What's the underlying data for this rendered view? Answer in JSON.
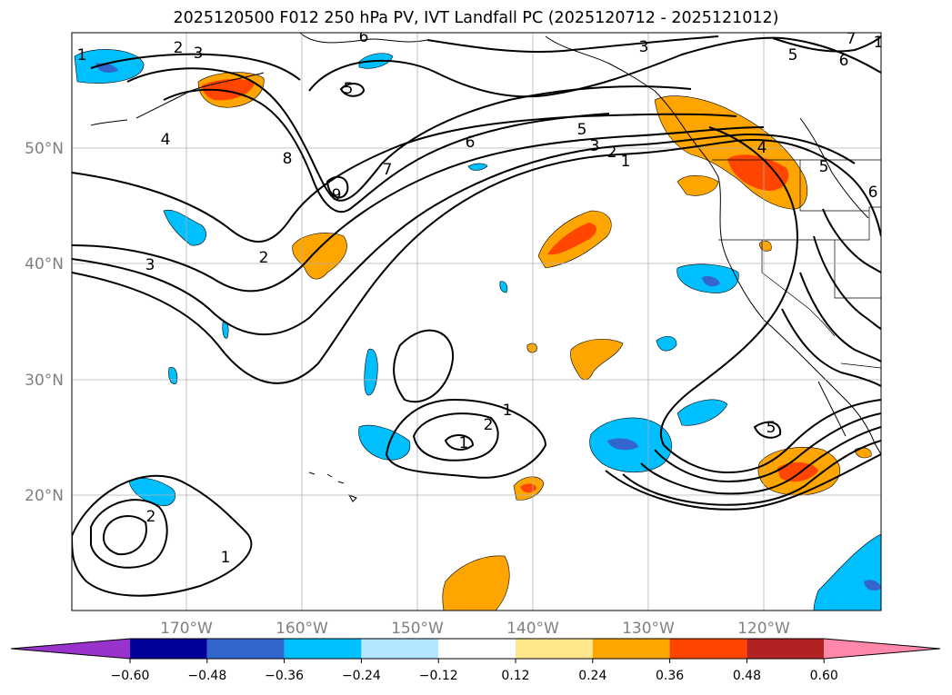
{
  "title": "2025120500 F012 250 hPa PV, IVT Landfall PC (2025120712 - 2025121012)",
  "axes": {
    "lat_labels": [
      "50°N",
      "40°N",
      "30°N",
      "20°N"
    ],
    "lon_labels": [
      "170°W",
      "160°W",
      "150°W",
      "140°W",
      "130°W",
      "120°W"
    ]
  },
  "colorbar": {
    "colors": [
      "#9933cc",
      "#000099",
      "#3366cc",
      "#00bfff",
      "#b3e6ff",
      "#ffffff",
      "#ffe88c",
      "#ffa500",
      "#ff4500",
      "#b22222",
      "#ff88aa"
    ],
    "tick_labels": [
      "−0.60",
      "−0.48",
      "−0.36",
      "−0.24",
      "−0.12",
      "0.12",
      "0.24",
      "0.36",
      "0.48",
      "0.60"
    ]
  },
  "pv_contour_labels": [
    "1",
    "2",
    "3",
    "4",
    "5",
    "6",
    "7",
    "8",
    "9",
    "3",
    "2",
    "1",
    "6",
    "5",
    "3",
    "2",
    "1",
    "3",
    "2",
    "1",
    "2",
    "1",
    "5",
    "6",
    "7",
    "6",
    "5",
    "4",
    "5",
    "1"
  ]
}
